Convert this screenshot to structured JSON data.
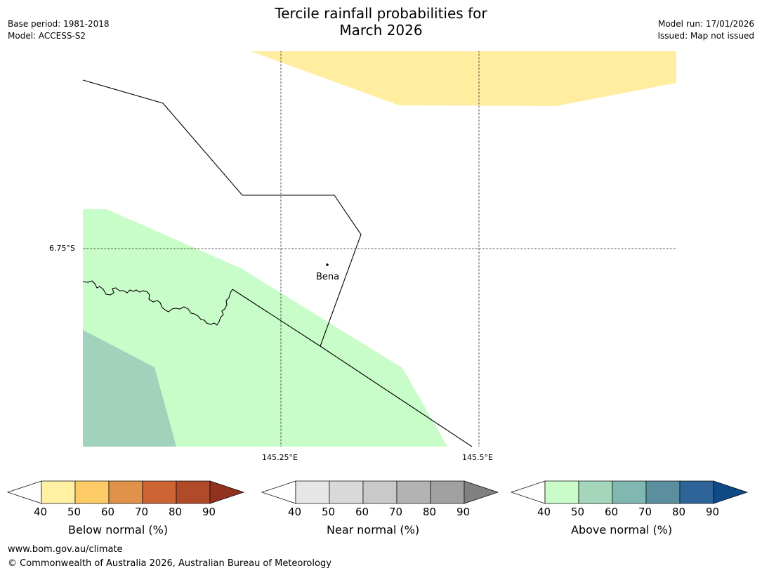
{
  "title_line1": "Tercile rainfall probabilities for",
  "title_line2": "March 2026",
  "meta_left": [
    "Base period: 1981-2018",
    "Model: ACCESS-S2"
  ],
  "meta_right": [
    "Model run: 17/01/2026",
    "Issued: Map not issued"
  ],
  "map": {
    "latitude_label": "6.75°S",
    "longitude_labels": [
      "145.25°E",
      "145.5°E"
    ],
    "place": "Bena"
  },
  "legends": [
    {
      "label": "Below normal (%)",
      "ticks": [
        "40",
        "50",
        "60",
        "70",
        "80",
        "90"
      ],
      "colors": [
        "#fff0a3",
        "#fdcc66",
        "#e0924a",
        "#cc6433",
        "#b04a28",
        "#92321e"
      ]
    },
    {
      "label": "Near normal (%)",
      "ticks": [
        "40",
        "50",
        "60",
        "70",
        "80",
        "90"
      ],
      "colors": [
        "#e6e6e6",
        "#d9d9d9",
        "#c9c9c9",
        "#b3b3b3",
        "#a1a1a1",
        "#808080"
      ]
    },
    {
      "label": "Above normal (%)",
      "ticks": [
        "40",
        "50",
        "60",
        "70",
        "80",
        "90"
      ],
      "colors": [
        "#c9fcc9",
        "#a3d6ba",
        "#80b7b0",
        "#5b8fa0",
        "#2f6498",
        "#0f4a87"
      ]
    }
  ],
  "footer": {
    "url": "www.bom.gov.au/climate",
    "copyright": "© Commonwealth of Australia 2026, Australian Bureau of Meteorology"
  }
}
